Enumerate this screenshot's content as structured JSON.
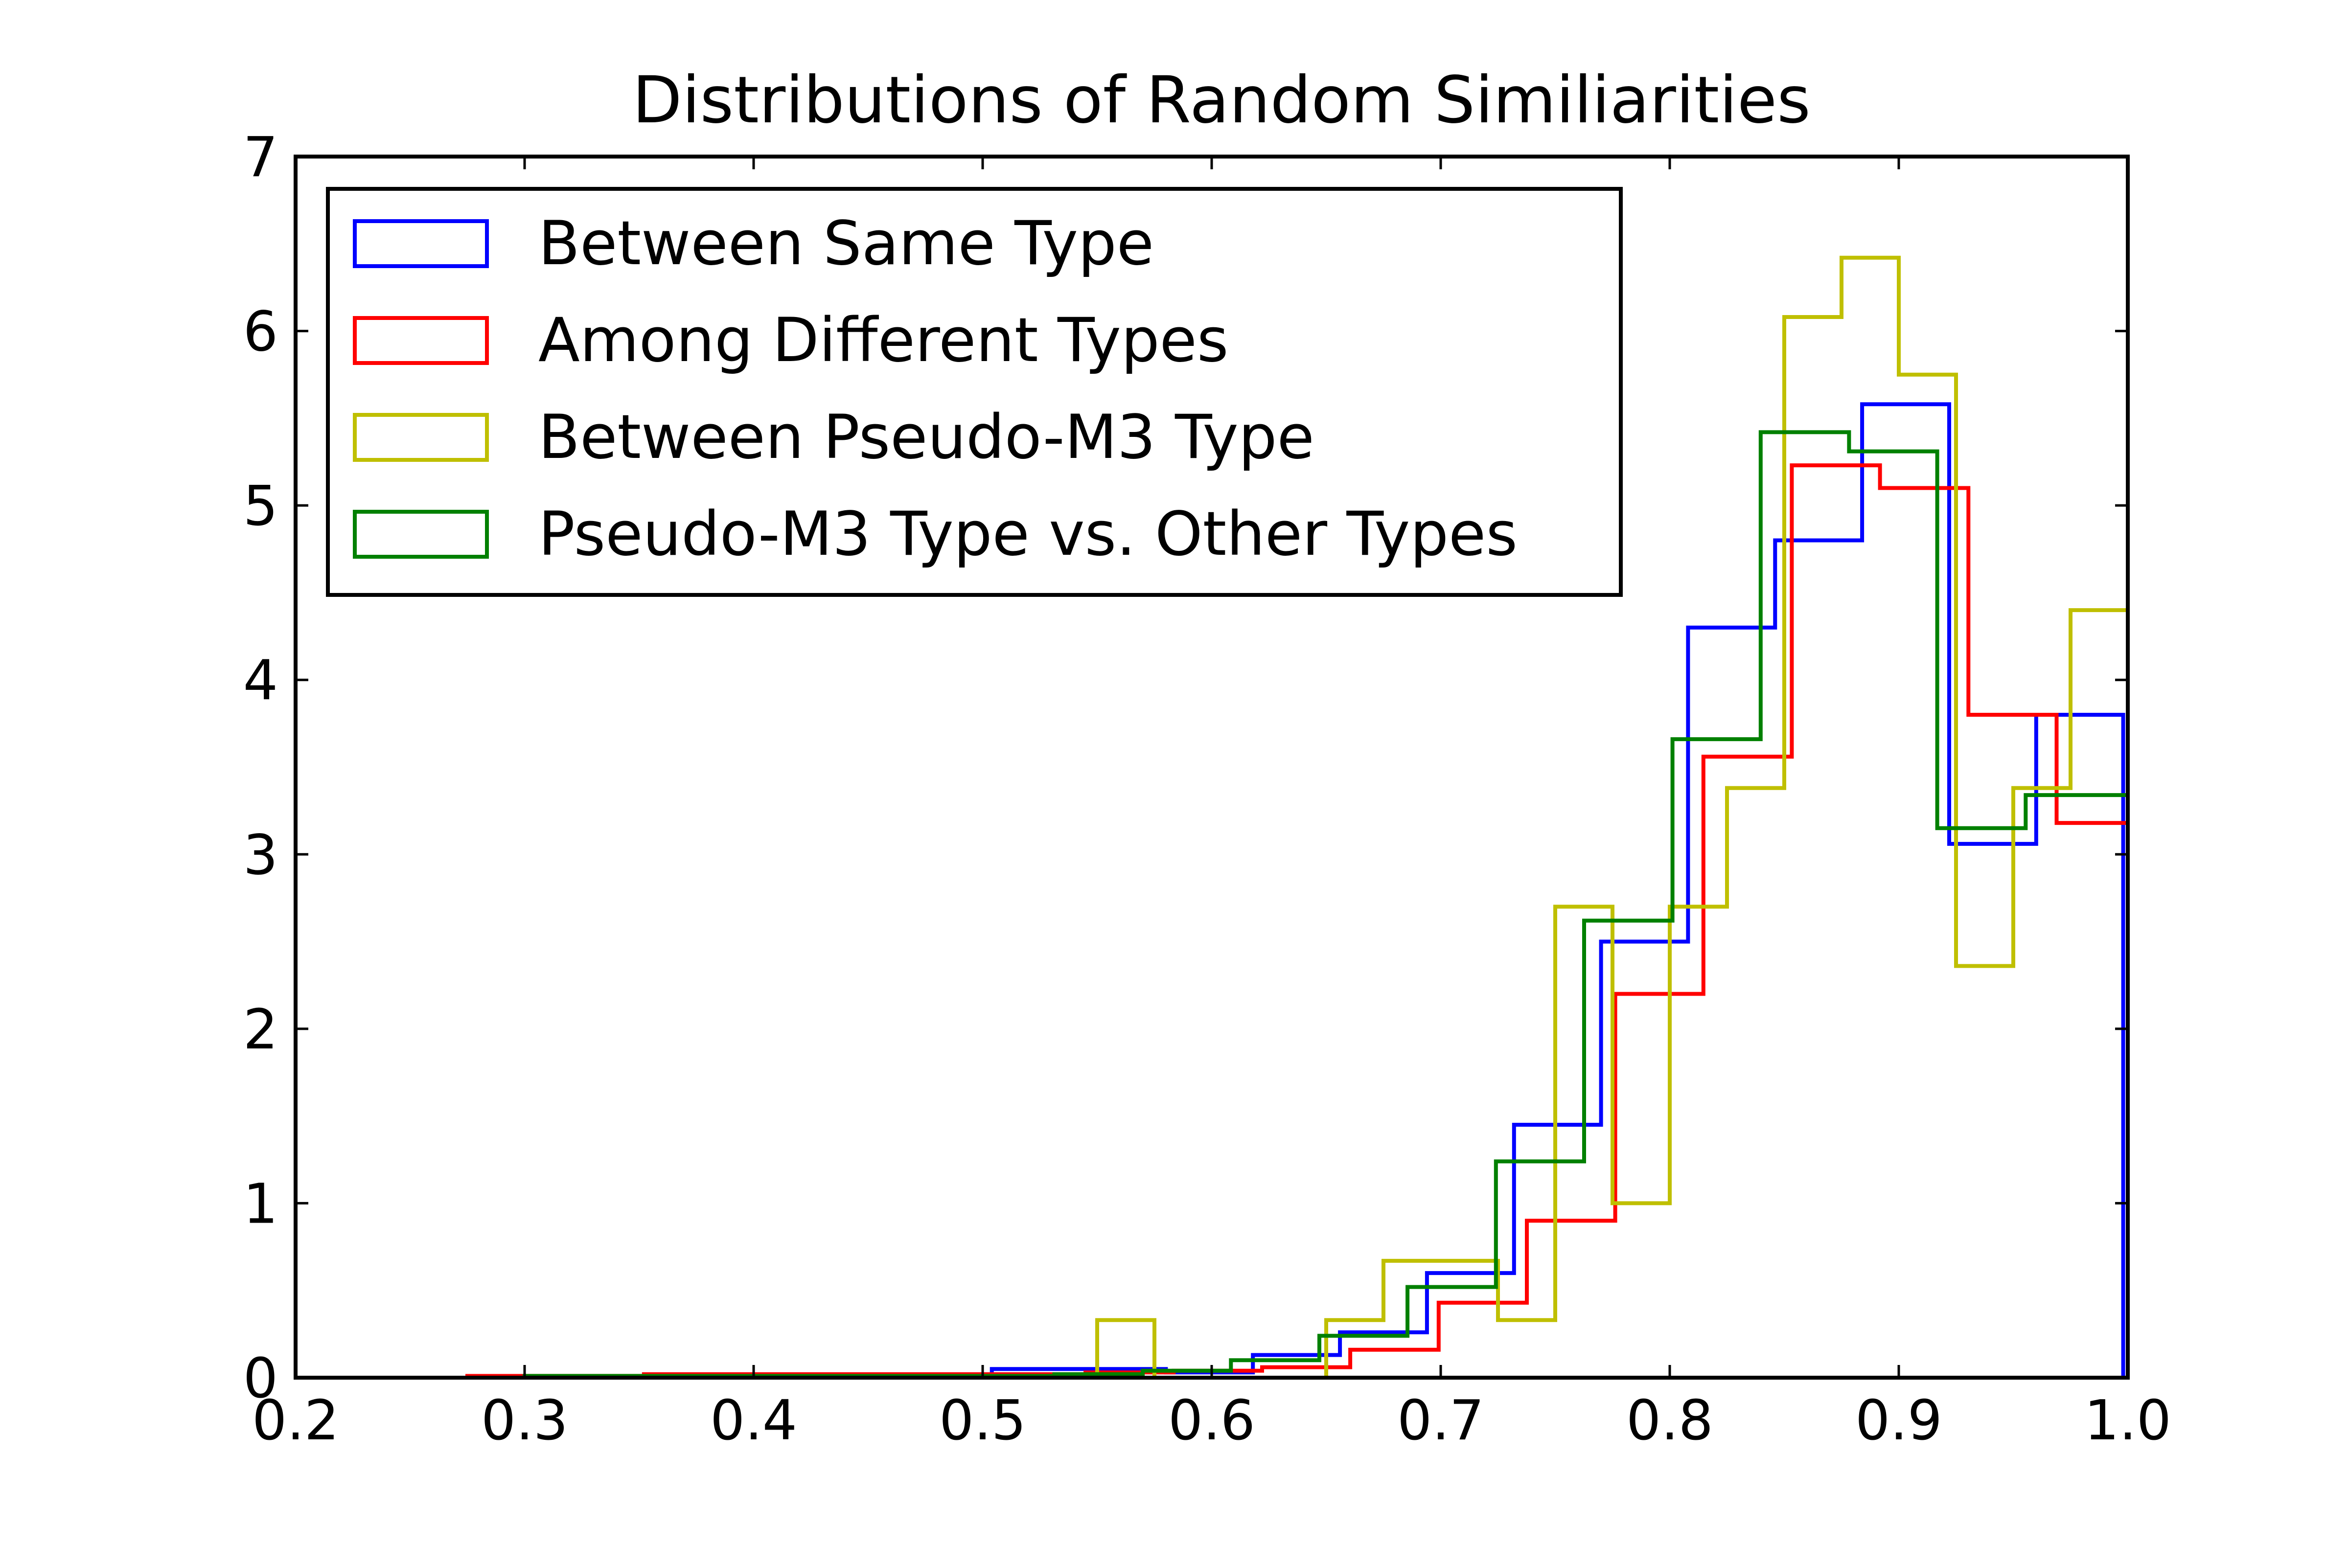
{
  "chart_data": {
    "type": "histogram",
    "title": "Distributions of Random Similiarities",
    "xlabel": "",
    "ylabel": "",
    "xlim": [
      0.2,
      1.0
    ],
    "ylim": [
      0,
      7
    ],
    "x_ticks": [
      "0.2",
      "0.3",
      "0.4",
      "0.5",
      "0.6",
      "0.7",
      "0.8",
      "0.9",
      "1.0"
    ],
    "y_ticks": [
      "0",
      "1",
      "2",
      "3",
      "4",
      "5",
      "6",
      "7"
    ],
    "grid": false,
    "legend_position": "top-left",
    "series": [
      {
        "name": "Between Same Type",
        "color": "#0000ff",
        "edges": [
          0.276,
          0.314,
          0.352,
          0.39,
          0.428,
          0.466,
          0.504,
          0.542,
          0.58,
          0.618,
          0.656,
          0.694,
          0.732,
          0.77,
          0.808,
          0.846,
          0.884,
          0.922,
          0.96,
          0.998
        ],
        "values": [
          0,
          0,
          0,
          0,
          0,
          0,
          0.05,
          0.05,
          0.03,
          0.13,
          0.26,
          0.6,
          1.45,
          2.5,
          4.3,
          4.8,
          5.58,
          3.06,
          3.8
        ]
      },
      {
        "name": "Among Different Types",
        "color": "#ff0000",
        "edges": [
          0.275,
          0.3136,
          0.3521,
          0.3907,
          0.4292,
          0.4678,
          0.5063,
          0.5449,
          0.5834,
          0.622,
          0.6605,
          0.6991,
          0.7376,
          0.7762,
          0.8147,
          0.8533,
          0.8918,
          0.9304,
          0.9689,
          1.0
        ],
        "values": [
          0.01,
          0.01,
          0.02,
          0.02,
          0.02,
          0.02,
          0.02,
          0.03,
          0.04,
          0.06,
          0.16,
          0.43,
          0.9,
          2.2,
          3.56,
          5.23,
          5.1,
          3.8,
          3.18
        ]
      },
      {
        "name": "Between Pseudo-M3 Type",
        "color": "#bfbf00",
        "edges": [
          0.5,
          0.525,
          0.55,
          0.575,
          0.6,
          0.625,
          0.65,
          0.675,
          0.7,
          0.725,
          0.75,
          0.775,
          0.8,
          0.825,
          0.85,
          0.875,
          0.9,
          0.925,
          0.95,
          0.975,
          1.0
        ],
        "values": [
          0,
          0,
          0.33,
          0,
          0,
          0,
          0.33,
          0.67,
          0.67,
          0.33,
          2.7,
          1.0,
          2.7,
          3.38,
          6.08,
          6.42,
          5.75,
          2.36,
          3.38,
          4.4
        ]
      },
      {
        "name": "Pseudo-M3 Type vs. Other Types",
        "color": "#008000",
        "edges": [
          0.3,
          0.3386,
          0.3771,
          0.4157,
          0.4542,
          0.4928,
          0.5313,
          0.5699,
          0.6084,
          0.647,
          0.6855,
          0.7241,
          0.7626,
          0.8012,
          0.8397,
          0.8783,
          0.9168,
          0.9554,
          0.9939,
          1.0
        ],
        "values": [
          0.01,
          0.01,
          0.01,
          0.01,
          0.01,
          0.01,
          0.02,
          0.04,
          0.1,
          0.24,
          0.52,
          1.24,
          2.62,
          3.66,
          5.42,
          5.31,
          3.15,
          3.34,
          3.34
        ]
      }
    ]
  }
}
